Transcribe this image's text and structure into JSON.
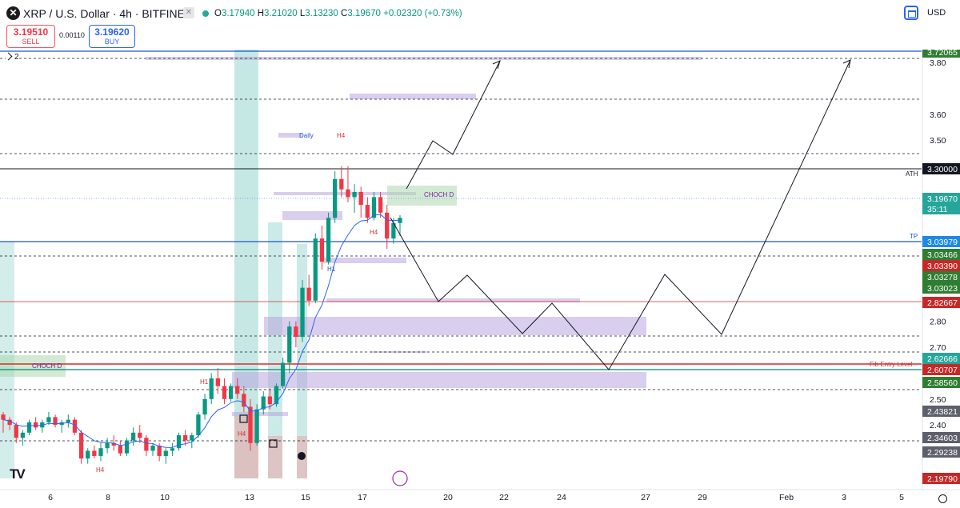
{
  "header": {
    "symbol_icon": "xrp-logo-icon",
    "title": "XRP / U.S. Dollar · 4h · BITFINEX",
    "ohlc": {
      "o_label": "O",
      "o": "3.17940",
      "h_label": "H",
      "h": "3.21020",
      "l_label": "L",
      "l": "3.13230",
      "c_label": "C",
      "c": "3.19670",
      "change": "+0.02320 (+0.73%)"
    },
    "sell_price": "3.19510",
    "sell_label": "SELL",
    "spread": "0.00110",
    "buy_price": "3.19620",
    "buy_label": "BUY",
    "currency": "USD",
    "legend_count": "2"
  },
  "colors": {
    "up": "#089981",
    "down": "#f23645",
    "ema": "#2962ff",
    "zone_purple": "#b39ddb",
    "zone_green": "#a5d6a7",
    "zone_red": "#ef9a9a",
    "zone_teal": "#80cbc4"
  },
  "chart_data": {
    "type": "candlestick",
    "symbol": "XRP / U.S. Dollar",
    "interval": "4h",
    "exchange": "BITFINEX",
    "y_range": [
      2.15,
      3.85
    ],
    "y_ticks": [
      2.4,
      2.5,
      2.7,
      2.8,
      3.1,
      3.4,
      3.5,
      3.6,
      3.8
    ],
    "x_ticks": [
      "6",
      "8",
      "10",
      "13",
      "15",
      "17",
      "20",
      "22",
      "24",
      "27",
      "29",
      "Feb",
      "3",
      "5"
    ],
    "price_labels": [
      {
        "text": "3.72558",
        "bg": "#1e88e5"
      },
      {
        "text": "3.72065",
        "bg": "#2e7d32"
      },
      {
        "text": "3.30000",
        "bg": "#131722"
      },
      {
        "text": "3.19670",
        "bg": "#26a69a",
        "countdown": "35:11"
      },
      {
        "text": "3.03979",
        "bg": "#1e88e5"
      },
      {
        "text": "3.03466",
        "bg": "#2e7d32"
      },
      {
        "text": "3.03390",
        "bg": "#c62828"
      },
      {
        "text": "3.03278",
        "bg": "#2e7d32"
      },
      {
        "text": "3.03023",
        "bg": "#2e7d32"
      },
      {
        "text": "2.82667",
        "bg": "#c62828"
      },
      {
        "text": "2.62666",
        "bg": "#26a69a"
      },
      {
        "text": "2.60707",
        "bg": "#c62828"
      },
      {
        "text": "2.58560",
        "bg": "#2e7d32"
      },
      {
        "text": "2.43821",
        "bg": "#5d606b"
      },
      {
        "text": "2.34603",
        "bg": "#5d606b"
      },
      {
        "text": "2.29238",
        "bg": "#5d606b"
      },
      {
        "text": "2.19790",
        "bg": "#c62828"
      }
    ],
    "annotations": [
      "TP",
      "ATH",
      "TP",
      "Fib Entry Level",
      "CHOCH D",
      "CHOCH D",
      "Daily",
      "H4",
      "H1",
      "H4",
      "H1",
      "H4",
      "H4"
    ],
    "candles": [
      [
        2.44,
        2.45,
        2.37,
        2.42
      ],
      [
        2.42,
        2.43,
        2.38,
        2.4
      ],
      [
        2.4,
        2.41,
        2.33,
        2.35
      ],
      [
        2.35,
        2.38,
        2.32,
        2.37
      ],
      [
        2.37,
        2.42,
        2.36,
        2.41
      ],
      [
        2.41,
        2.43,
        2.38,
        2.39
      ],
      [
        2.39,
        2.42,
        2.37,
        2.41
      ],
      [
        2.41,
        2.45,
        2.4,
        2.43
      ],
      [
        2.43,
        2.44,
        2.39,
        2.4
      ],
      [
        2.4,
        2.42,
        2.37,
        2.41
      ],
      [
        2.41,
        2.44,
        2.39,
        2.42
      ],
      [
        2.42,
        2.43,
        2.36,
        2.37
      ],
      [
        2.37,
        2.38,
        2.25,
        2.27
      ],
      [
        2.27,
        2.31,
        2.25,
        2.3
      ],
      [
        2.3,
        2.32,
        2.27,
        2.28
      ],
      [
        2.28,
        2.33,
        2.26,
        2.31
      ],
      [
        2.31,
        2.35,
        2.29,
        2.33
      ],
      [
        2.33,
        2.36,
        2.3,
        2.32
      ],
      [
        2.32,
        2.34,
        2.28,
        2.29
      ],
      [
        2.29,
        2.35,
        2.28,
        2.34
      ],
      [
        2.34,
        2.39,
        2.32,
        2.37
      ],
      [
        2.37,
        2.4,
        2.33,
        2.35
      ],
      [
        2.35,
        2.36,
        2.28,
        2.3
      ],
      [
        2.3,
        2.33,
        2.28,
        2.32
      ],
      [
        2.32,
        2.33,
        2.26,
        2.28
      ],
      [
        2.28,
        2.31,
        2.25,
        2.3
      ],
      [
        2.3,
        2.33,
        2.28,
        2.31
      ],
      [
        2.31,
        2.37,
        2.3,
        2.36
      ],
      [
        2.36,
        2.38,
        2.32,
        2.34
      ],
      [
        2.34,
        2.37,
        2.31,
        2.36
      ],
      [
        2.36,
        2.45,
        2.35,
        2.44
      ],
      [
        2.44,
        2.52,
        2.42,
        2.5
      ],
      [
        2.5,
        2.6,
        2.48,
        2.58
      ],
      [
        2.58,
        2.62,
        2.52,
        2.55
      ],
      [
        2.55,
        2.58,
        2.48,
        2.5
      ],
      [
        2.5,
        2.56,
        2.49,
        2.55
      ],
      [
        2.55,
        2.58,
        2.5,
        2.52
      ],
      [
        2.52,
        2.55,
        2.45,
        2.47
      ],
      [
        2.47,
        2.5,
        2.3,
        2.33
      ],
      [
        2.33,
        2.48,
        2.32,
        2.46
      ],
      [
        2.46,
        2.53,
        2.44,
        2.51
      ],
      [
        2.51,
        2.54,
        2.46,
        2.48
      ],
      [
        2.48,
        2.56,
        2.47,
        2.55
      ],
      [
        2.55,
        2.66,
        2.54,
        2.64
      ],
      [
        2.64,
        2.8,
        2.6,
        2.78
      ],
      [
        2.78,
        2.8,
        2.7,
        2.74
      ],
      [
        2.74,
        2.96,
        2.72,
        2.93
      ],
      [
        2.93,
        2.98,
        2.86,
        2.88
      ],
      [
        2.88,
        3.14,
        2.87,
        3.12
      ],
      [
        3.12,
        3.17,
        3.0,
        3.03
      ],
      [
        3.03,
        3.22,
        3.02,
        3.2
      ],
      [
        3.2,
        3.38,
        3.18,
        3.35
      ],
      [
        3.35,
        3.4,
        3.28,
        3.31
      ],
      [
        3.31,
        3.4,
        3.26,
        3.28
      ],
      [
        3.28,
        3.33,
        3.22,
        3.3
      ],
      [
        3.3,
        3.32,
        3.2,
        3.25
      ],
      [
        3.25,
        3.28,
        3.18,
        3.2
      ],
      [
        3.2,
        3.3,
        3.19,
        3.28
      ],
      [
        3.28,
        3.3,
        3.2,
        3.22
      ],
      [
        3.22,
        3.25,
        3.08,
        3.12
      ],
      [
        3.12,
        3.2,
        3.1,
        3.18
      ],
      [
        3.18,
        3.21,
        3.13,
        3.2
      ]
    ]
  }
}
